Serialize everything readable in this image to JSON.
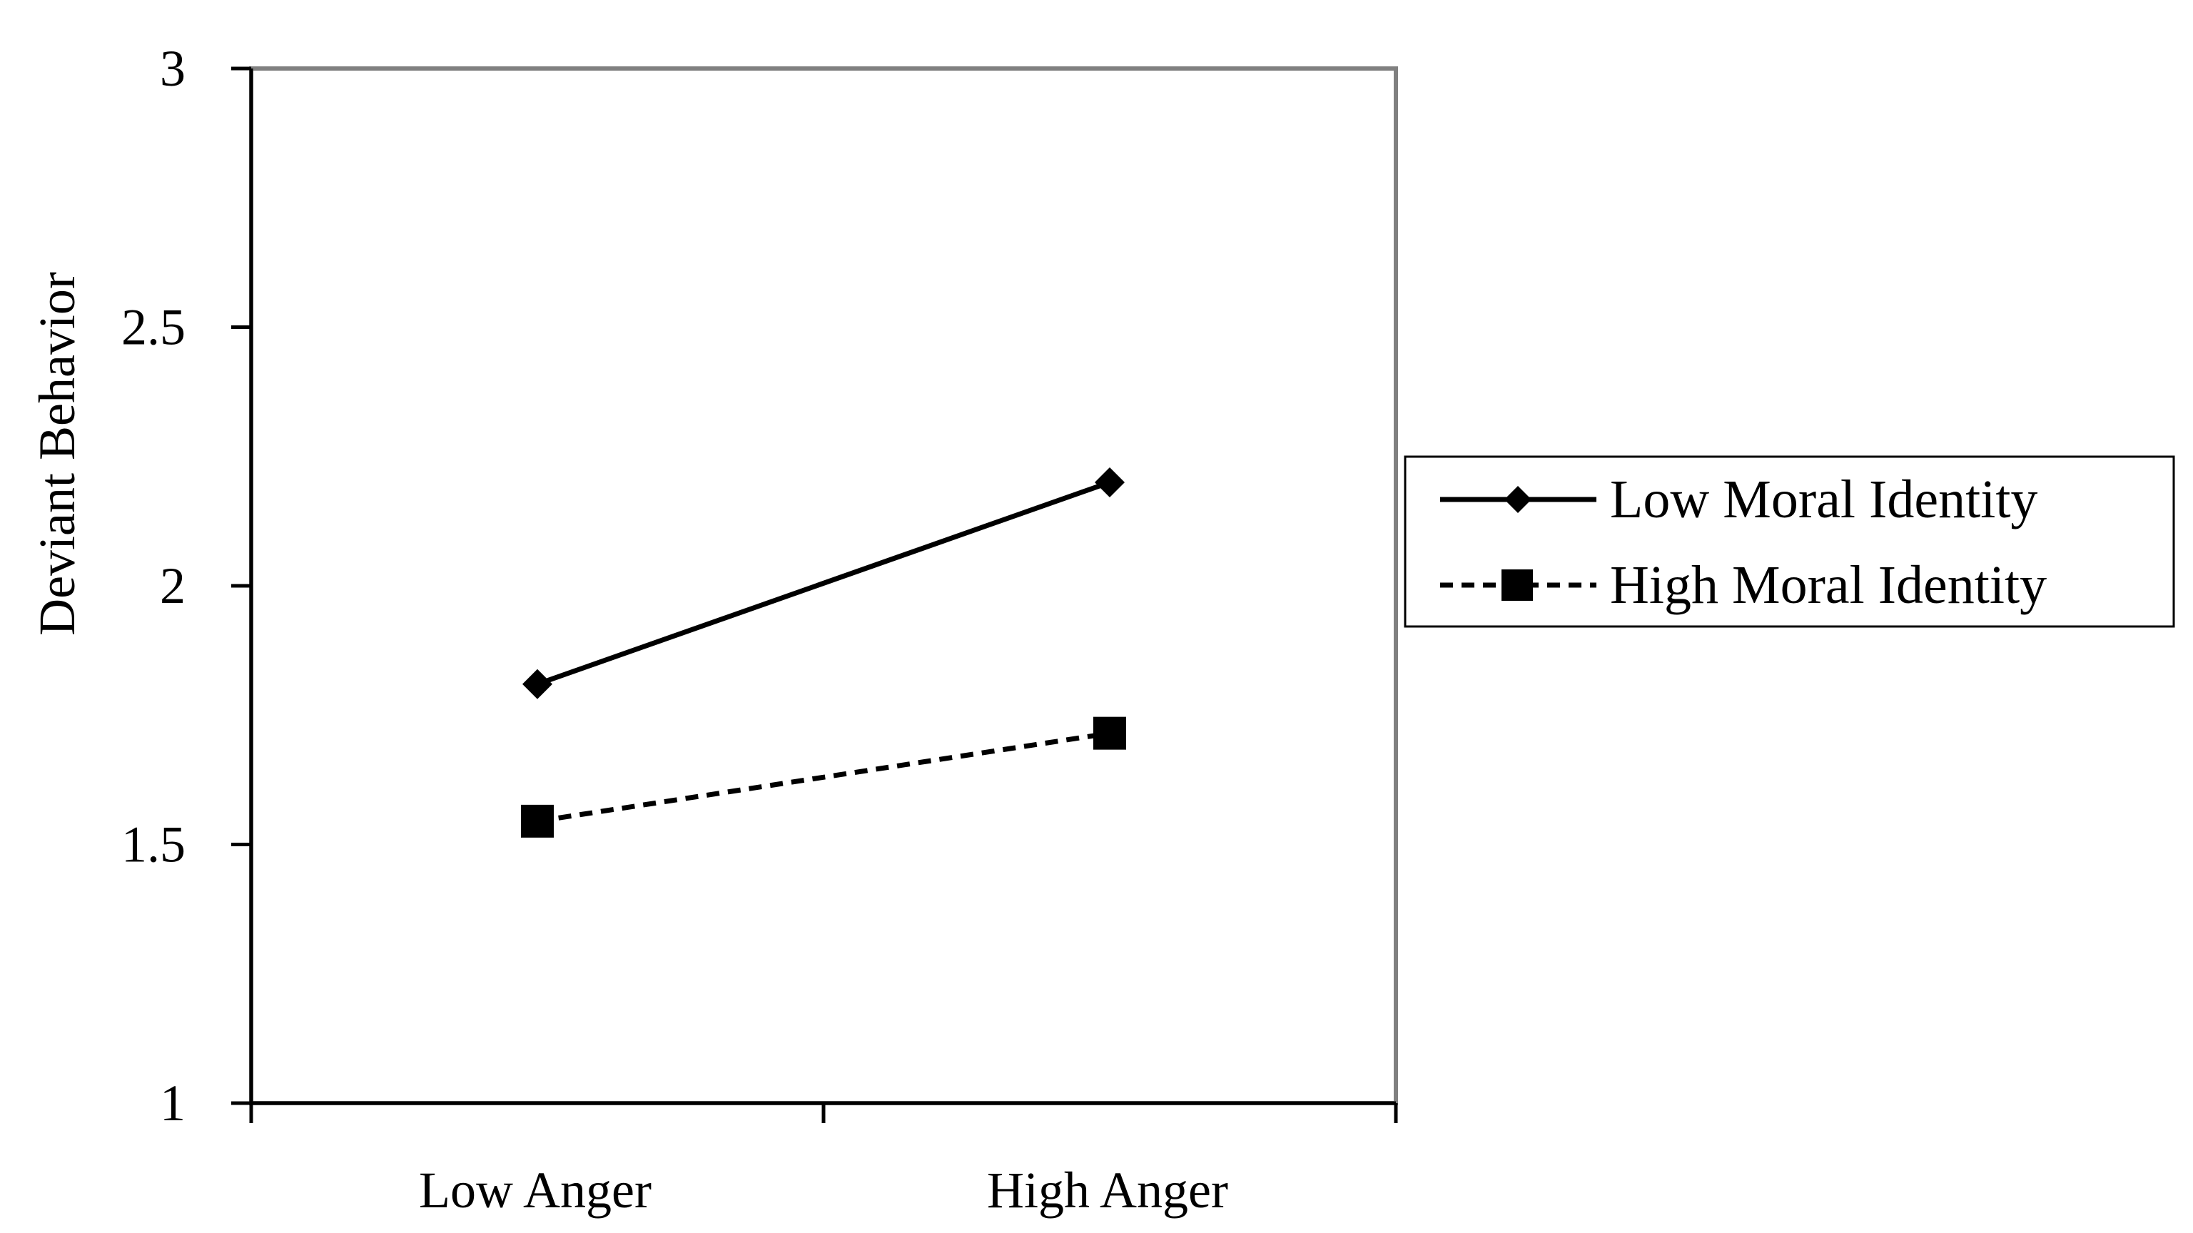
{
  "chart_data": {
    "type": "line",
    "title": "",
    "xlabel": "",
    "ylabel": "Deviant Behavior",
    "categories": [
      "Low Anger",
      "High Anger"
    ],
    "ylim": [
      1,
      3
    ],
    "yticks": [
      "1",
      "1.5",
      "2",
      "2.5",
      "3"
    ],
    "grid": false,
    "legend_position": "right",
    "series": [
      {
        "name": "Low Moral Identity",
        "values": [
          1.81,
          2.2
        ],
        "marker": "diamond",
        "line_style": "solid",
        "color": "#000000"
      },
      {
        "name": "High Moral Identity",
        "values": [
          1.545,
          1.715
        ],
        "marker": "square",
        "line_style": "dashed",
        "color": "#000000"
      }
    ]
  }
}
